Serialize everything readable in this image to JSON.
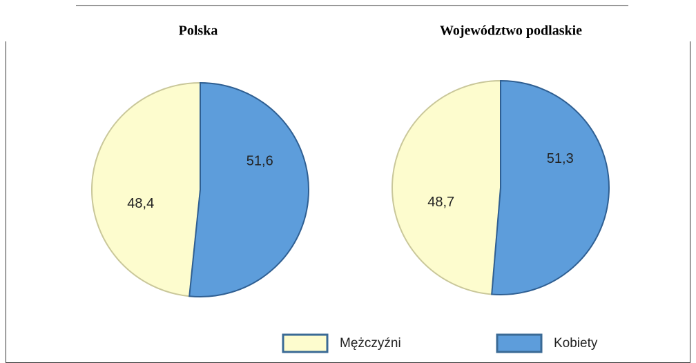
{
  "chart_data": [
    {
      "type": "pie",
      "title": "Polska",
      "categories": [
        "Mężczyźni",
        "Kobiety"
      ],
      "values": [
        48.4,
        51.6
      ],
      "value_labels": [
        "48,4",
        "51,6"
      ],
      "colors": [
        "#fdfcce",
        "#5d9ddb"
      ]
    },
    {
      "type": "pie",
      "title": "Województwo podlaskie",
      "categories": [
        "Mężczyźni",
        "Kobiety"
      ],
      "values": [
        48.7,
        51.3
      ],
      "value_labels": [
        "48,7",
        "51,3"
      ],
      "colors": [
        "#fdfcce",
        "#5d9ddb"
      ]
    }
  ]
}
